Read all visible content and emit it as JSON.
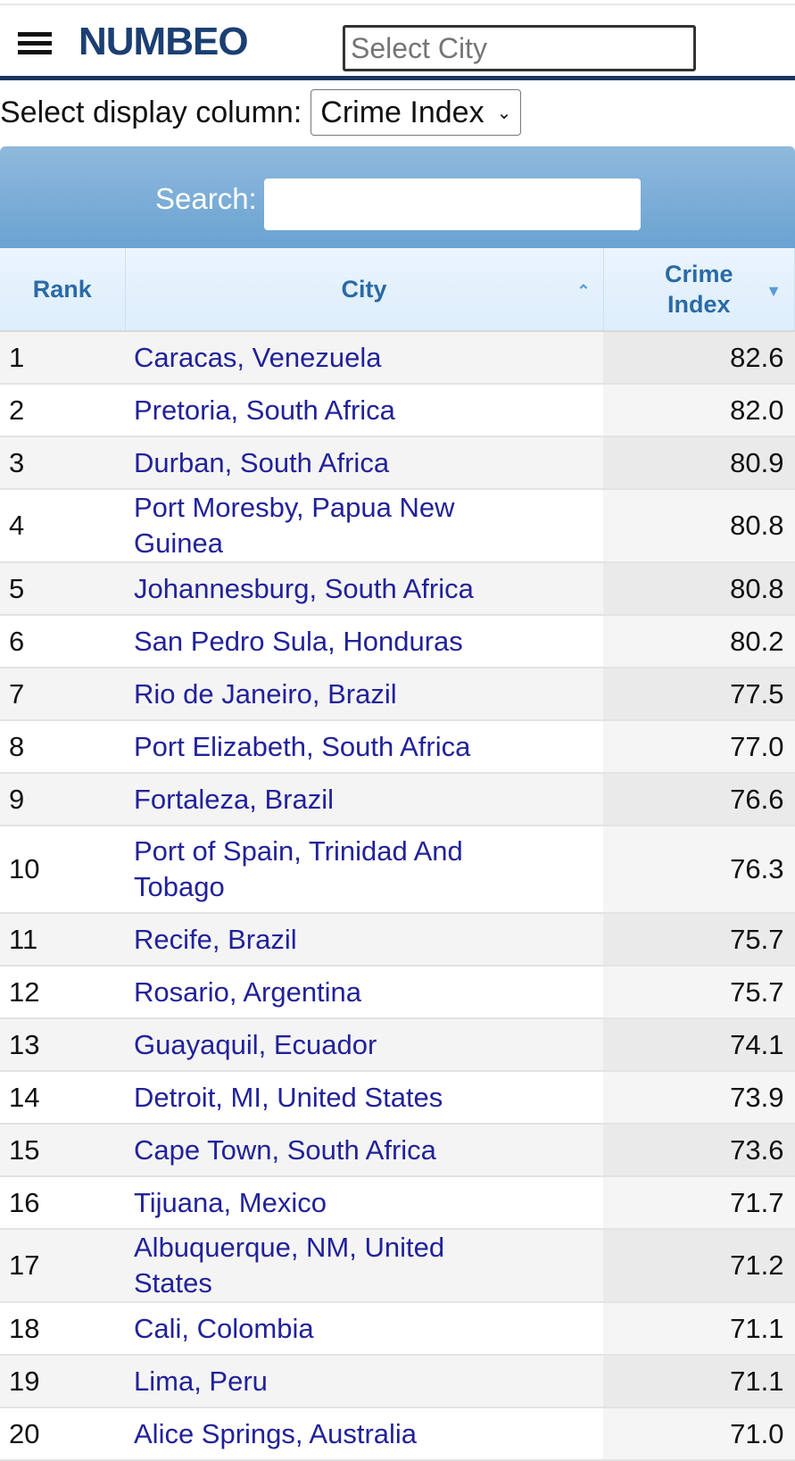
{
  "header": {
    "logo": "NUMBEO",
    "city_placeholder": "Select City"
  },
  "display_column": {
    "label": "Select display column:",
    "selected": "Crime Index"
  },
  "search": {
    "label": "Search:",
    "value": ""
  },
  "columns": {
    "rank": "Rank",
    "city": "City",
    "crime": "Crime Index"
  },
  "rows": [
    {
      "rank": "1",
      "city": "Caracas, Venezuela",
      "value": "82.6"
    },
    {
      "rank": "2",
      "city": "Pretoria, South Africa",
      "value": "82.0"
    },
    {
      "rank": "3",
      "city": "Durban, South Africa",
      "value": "80.9"
    },
    {
      "rank": "4",
      "city": "Port Moresby, Papua New Guinea",
      "value": "80.8"
    },
    {
      "rank": "5",
      "city": "Johannesburg, South Africa",
      "value": "80.8"
    },
    {
      "rank": "6",
      "city": "San Pedro Sula, Honduras",
      "value": "80.2"
    },
    {
      "rank": "7",
      "city": "Rio de Janeiro, Brazil",
      "value": "77.5"
    },
    {
      "rank": "8",
      "city": "Port Elizabeth, South Africa",
      "value": "77.0"
    },
    {
      "rank": "9",
      "city": "Fortaleza, Brazil",
      "value": "76.6"
    },
    {
      "rank": "10",
      "city": "Port of Spain, Trinidad And Tobago",
      "value": "76.3"
    },
    {
      "rank": "11",
      "city": "Recife, Brazil",
      "value": "75.7"
    },
    {
      "rank": "12",
      "city": "Rosario, Argentina",
      "value": "75.7"
    },
    {
      "rank": "13",
      "city": "Guayaquil, Ecuador",
      "value": "74.1"
    },
    {
      "rank": "14",
      "city": "Detroit, MI, United States",
      "value": "73.9"
    },
    {
      "rank": "15",
      "city": "Cape Town, South Africa",
      "value": "73.6"
    },
    {
      "rank": "16",
      "city": "Tijuana, Mexico",
      "value": "71.7"
    },
    {
      "rank": "17",
      "city": "Albuquerque, NM, United States",
      "value": "71.2"
    },
    {
      "rank": "18",
      "city": "Cali, Colombia",
      "value": "71.1"
    },
    {
      "rank": "19",
      "city": "Lima, Peru",
      "value": "71.1"
    },
    {
      "rank": "20",
      "city": "Alice Springs, Australia",
      "value": "71.0"
    }
  ]
}
